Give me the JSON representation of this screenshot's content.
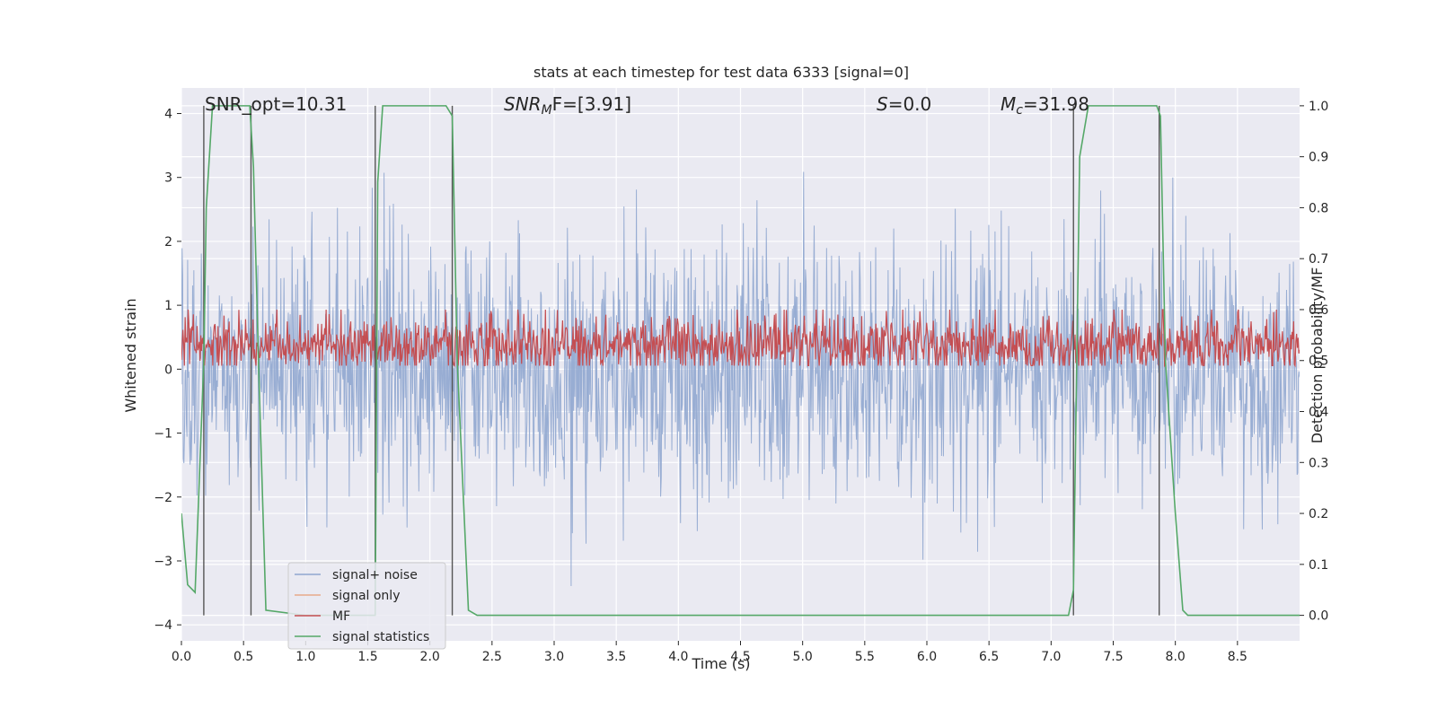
{
  "chart_data": {
    "type": "line",
    "title": "stats at each timestep for test data 6333 [signal=0]",
    "xlabel": "Time (s)",
    "ylabel": "Whitened strain",
    "ylabel_right": "Detection probability/MF",
    "xlim": [
      0.0,
      9.0
    ],
    "ylim": [
      -4.25,
      4.4
    ],
    "ylim_right": [
      -0.05,
      1.035
    ],
    "x_ticks": [
      "0.0",
      "0.5",
      "1.0",
      "1.5",
      "2.0",
      "2.5",
      "3.0",
      "3.5",
      "4.0",
      "4.5",
      "5.0",
      "5.5",
      "6.0",
      "6.5",
      "7.0",
      "7.5",
      "8.0",
      "8.5"
    ],
    "y_ticks": [
      "4",
      "3",
      "2",
      "1",
      "0",
      "−1",
      "−2",
      "−3",
      "−4"
    ],
    "y_right_ticks": [
      "1.0",
      "0.9",
      "0.8",
      "0.7",
      "0.6",
      "0.5",
      "0.4",
      "0.3",
      "0.2",
      "0.1",
      "0.0"
    ],
    "annotations": {
      "snr_opt": "SNR_opt=10.31",
      "snr_mf_sym": "SNR",
      "snr_mf_sub": "M",
      "snr_mf_rest": "F=[3.91]",
      "s_sym": "S",
      "s_rest": "=0.0",
      "mc_sym": "M",
      "mc_sub": "c",
      "mc_rest": "=31.98"
    },
    "legend": {
      "placement": "lower-left",
      "entries": [
        "signal+ noise",
        "signal only",
        "MF",
        "signal statistics"
      ]
    },
    "colors": {
      "noise": "#8fa6cf",
      "signal_only": "#e8a98a",
      "mf": "#c44e52",
      "stat": "#55a868",
      "vline": "#555555",
      "background": "#eaeaf2"
    },
    "detection_boundaries": [
      0.18,
      0.56,
      1.56,
      2.18,
      7.18,
      7.87
    ],
    "series": [
      {
        "name": "signal statistics",
        "x": [
          0.0,
          0.05,
          0.11,
          0.18,
          0.2,
          0.25,
          0.5,
          0.55,
          0.58,
          0.62,
          0.68,
          1.0,
          1.5,
          1.56,
          1.58,
          1.62,
          2.0,
          2.13,
          2.18,
          2.22,
          2.31,
          2.38,
          3.0,
          4.0,
          5.0,
          6.0,
          7.0,
          7.14,
          7.18,
          7.23,
          7.3,
          7.5,
          7.8,
          7.85,
          7.88,
          7.92,
          8.0,
          8.06,
          8.1,
          8.5,
          9.0
        ],
        "y": [
          0.2,
          0.06,
          0.045,
          0.5,
          0.8,
          1.0,
          1.0,
          1.0,
          0.88,
          0.5,
          0.01,
          0.0,
          0.0,
          0.0,
          0.85,
          1.0,
          1.0,
          1.0,
          0.98,
          0.5,
          0.01,
          0.0,
          0.0,
          0.0,
          0.0,
          0.0,
          0.0,
          0.0,
          0.05,
          0.9,
          1.0,
          1.0,
          1.0,
          1.0,
          0.98,
          0.5,
          0.2,
          0.01,
          0.0,
          0.0,
          0.0
        ]
      },
      {
        "name": "signal+ noise",
        "description_values": "whitened strain noise, range -3.9 to 3.4"
      },
      {
        "name": "MF",
        "description_values": "matched filter output around 0.53 (right axis)"
      },
      {
        "name": "signal only",
        "values": []
      }
    ]
  }
}
